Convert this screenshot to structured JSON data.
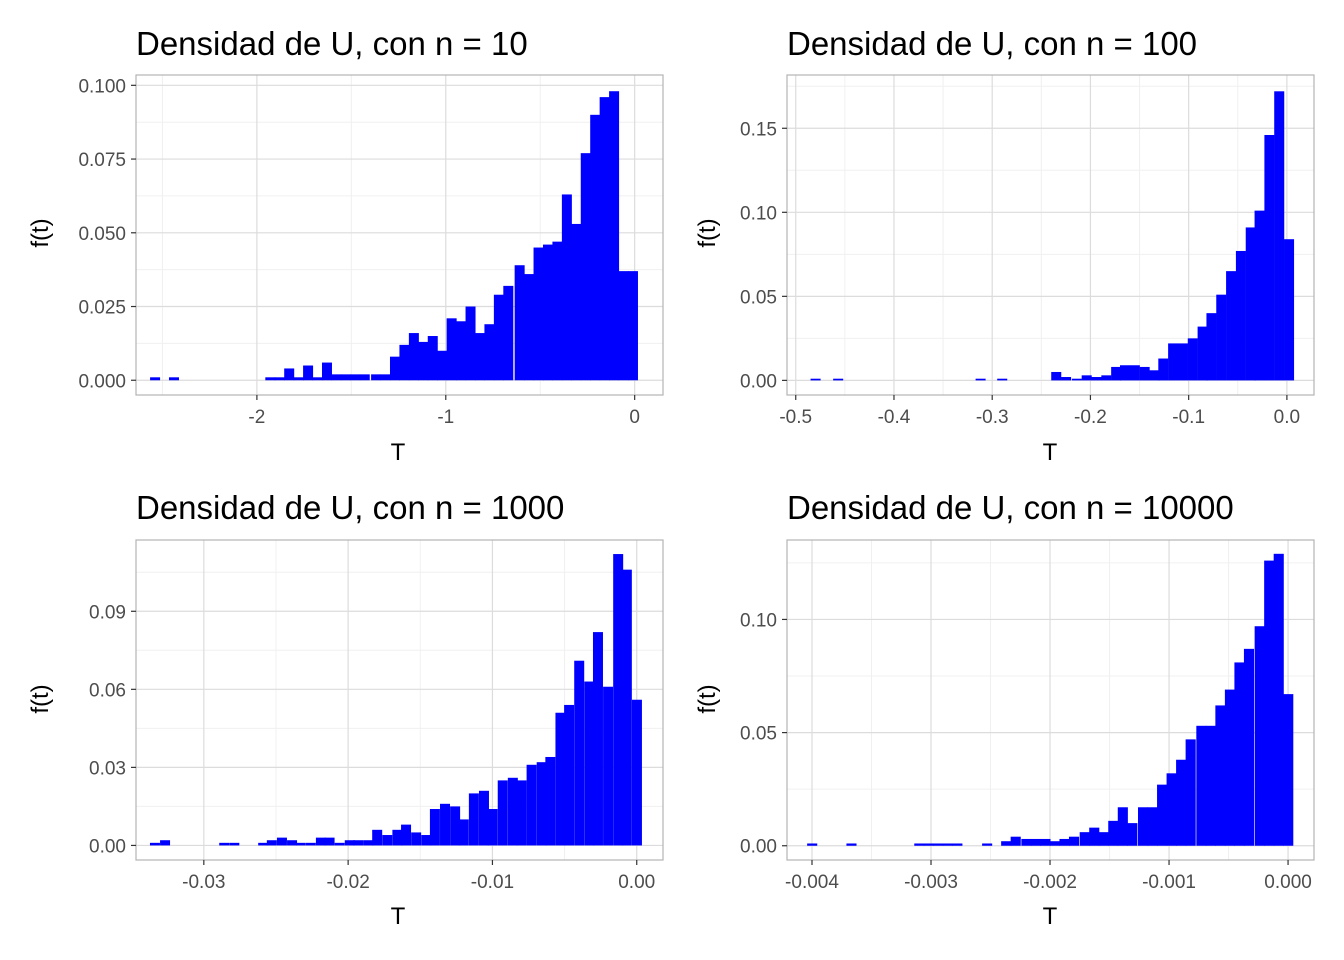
{
  "chart_data": [
    {
      "type": "bar",
      "title": "Densidad de U, con n = 10",
      "xlabel": "T",
      "ylabel": "f(t)",
      "color": "#0000ff",
      "xlim": [
        -2.64,
        0.15
      ],
      "ylim": [
        -0.005,
        0.1035
      ],
      "xticks": [
        -2,
        -1,
        0
      ],
      "xtick_labels": [
        "-2",
        "-1",
        "0"
      ],
      "yticks": [
        0,
        0.025,
        0.05,
        0.075,
        0.1
      ],
      "ytick_labels": [
        "0.000",
        "0.025",
        "0.050",
        "0.075",
        "0.100"
      ],
      "bin_width": 0.0508,
      "bin_centers": [
        -2.54,
        -2.44,
        -1.93,
        -1.88,
        -1.83,
        -1.78,
        -1.73,
        -1.68,
        -1.63,
        -1.58,
        -1.53,
        -1.48,
        -1.43,
        -1.37,
        -1.32,
        -1.27,
        -1.22,
        -1.17,
        -1.12,
        -1.07,
        -1.02,
        -0.97,
        -0.92,
        -0.87,
        -0.82,
        -0.77,
        -0.72,
        -0.67,
        -0.61,
        -0.56,
        -0.51,
        -0.46,
        -0.41,
        -0.36,
        -0.31,
        -0.26,
        -0.21,
        -0.16,
        -0.11,
        -0.06,
        -0.01
      ],
      "values": [
        0.001,
        0.001,
        0.001,
        0.001,
        0.004,
        0.001,
        0.005,
        0.001,
        0.006,
        0.002,
        0.002,
        0.002,
        0.002,
        0.002,
        0.002,
        0.008,
        0.012,
        0.016,
        0.013,
        0.015,
        0.01,
        0.021,
        0.02,
        0.025,
        0.016,
        0.019,
        0.029,
        0.032,
        0.039,
        0.036,
        0.045,
        0.046,
        0.047,
        0.063,
        0.053,
        0.077,
        0.09,
        0.096,
        0.098,
        0.037,
        0.037
      ]
    },
    {
      "type": "bar",
      "title": "Densidad de U, con n = 100",
      "xlabel": "T",
      "ylabel": "f(t)",
      "color": "#0000ff",
      "xlim": [
        -0.5089,
        0.0276
      ],
      "ylim": [
        -0.0087,
        0.1817
      ],
      "xticks": [
        -0.5,
        -0.4,
        -0.3,
        -0.2,
        -0.1,
        0.0
      ],
      "xtick_labels": [
        "-0.5",
        "-0.4",
        "-0.3",
        "-0.2",
        "-0.1",
        "0.0"
      ],
      "yticks": [
        0,
        0.05,
        0.1,
        0.15
      ],
      "ytick_labels": [
        "0.00",
        "0.05",
        "0.10",
        "0.15"
      ],
      "bin_width": 0.0098,
      "bin_centers": [
        -0.48,
        -0.457,
        -0.312,
        -0.29,
        -0.235,
        -0.225,
        -0.214,
        -0.204,
        -0.194,
        -0.184,
        -0.174,
        -0.165,
        -0.155,
        -0.145,
        -0.135,
        -0.126,
        -0.116,
        -0.106,
        -0.096,
        -0.086,
        -0.077,
        -0.067,
        -0.057,
        -0.047,
        -0.037,
        -0.028,
        -0.018,
        -0.008,
        0.002
      ],
      "values": [
        0.001,
        0.001,
        0.001,
        0.001,
        0.005,
        0.002,
        0.001,
        0.003,
        0.002,
        0.003,
        0.008,
        0.009,
        0.009,
        0.008,
        0.006,
        0.013,
        0.022,
        0.022,
        0.025,
        0.032,
        0.04,
        0.051,
        0.065,
        0.077,
        0.091,
        0.101,
        0.146,
        0.172,
        0.084
      ]
    },
    {
      "type": "bar",
      "title": "Densidad de U, con n = 1000",
      "xlabel": "T",
      "ylabel": "f(t)",
      "color": "#0000ff",
      "xlim": [
        -0.0347,
        0.00182
      ],
      "ylim": [
        -0.0056,
        0.1174
      ],
      "xticks": [
        -0.03,
        -0.02,
        -0.01,
        0.0
      ],
      "xtick_labels": [
        "-0.03",
        "-0.02",
        "-0.01",
        "0.00"
      ],
      "yticks": [
        0,
        0.03,
        0.06,
        0.09
      ],
      "ytick_labels": [
        "0.00",
        "0.03",
        "0.06",
        "0.09"
      ],
      "bin_width": 0.000665,
      "bin_centers": [
        -0.0334,
        -0.0327,
        -0.0286,
        -0.0279,
        -0.0259,
        -0.0253,
        -0.0246,
        -0.0239,
        -0.0233,
        -0.0226,
        -0.0219,
        -0.0213,
        -0.0206,
        -0.0199,
        -0.0193,
        -0.0186,
        -0.018,
        -0.0173,
        -0.0166,
        -0.016,
        -0.0153,
        -0.0146,
        -0.014,
        -0.0133,
        -0.0126,
        -0.012,
        -0.0113,
        -0.0106,
        -0.01,
        -0.0093,
        -0.0086,
        -0.008,
        -0.0073,
        -0.0066,
        -0.006,
        -0.0053,
        -0.0047,
        -0.004,
        -0.0033,
        -0.0027,
        -0.002,
        -0.0013,
        -0.0007,
        0.0
      ],
      "values": [
        0.001,
        0.002,
        0.001,
        0.001,
        0.001,
        0.002,
        0.003,
        0.002,
        0.001,
        0.001,
        0.003,
        0.003,
        0.001,
        0.002,
        0.002,
        0.002,
        0.006,
        0.004,
        0.006,
        0.008,
        0.005,
        0.004,
        0.014,
        0.016,
        0.015,
        0.01,
        0.02,
        0.021,
        0.014,
        0.025,
        0.026,
        0.025,
        0.031,
        0.032,
        0.034,
        0.051,
        0.054,
        0.071,
        0.063,
        0.082,
        0.061,
        0.112,
        0.106,
        0.056
      ]
    },
    {
      "type": "bar",
      "title": "Densidad de U, con n = 10000",
      "xlabel": "T",
      "ylabel": "f(t)",
      "color": "#0000ff",
      "xlim": [
        -0.00421,
        0.000218
      ],
      "ylim": [
        -0.0063,
        0.1351
      ],
      "xticks": [
        -0.004,
        -0.003,
        -0.002,
        -0.001,
        0.0
      ],
      "xtick_labels": [
        "-0.004",
        "-0.003",
        "-0.002",
        "-0.001",
        "0.000"
      ],
      "yticks": [
        0,
        0.05,
        0.1
      ],
      "ytick_labels": [
        "0.00",
        "0.05",
        "0.10"
      ],
      "bin_width": 8.15e-05,
      "bin_centers": [
        -0.004,
        -0.00367,
        -0.0031,
        -0.00302,
        -0.00294,
        -0.00286,
        -0.00278,
        -0.00253,
        -0.00237,
        -0.00229,
        -0.0022,
        -0.00212,
        -0.00204,
        -0.00196,
        -0.00188,
        -0.0018,
        -0.00171,
        -0.00163,
        -0.00155,
        -0.00147,
        -0.00139,
        -0.00131,
        -0.00122,
        -0.00114,
        -0.00106,
        -0.00098,
        -0.0009,
        -0.00082,
        -0.00073,
        -0.00065,
        -0.00057,
        -0.00049,
        -0.00041,
        -0.00033,
        -0.00024,
        -0.00016,
        -8e-05,
        0.0
      ],
      "values": [
        0.001,
        0.001,
        0.001,
        0.001,
        0.001,
        0.001,
        0.001,
        0.001,
        0.002,
        0.004,
        0.003,
        0.003,
        0.003,
        0.002,
        0.003,
        0.004,
        0.006,
        0.008,
        0.006,
        0.011,
        0.017,
        0.01,
        0.017,
        0.017,
        0.027,
        0.032,
        0.038,
        0.047,
        0.053,
        0.053,
        0.062,
        0.069,
        0.081,
        0.087,
        0.097,
        0.126,
        0.129,
        0.067
      ]
    }
  ]
}
